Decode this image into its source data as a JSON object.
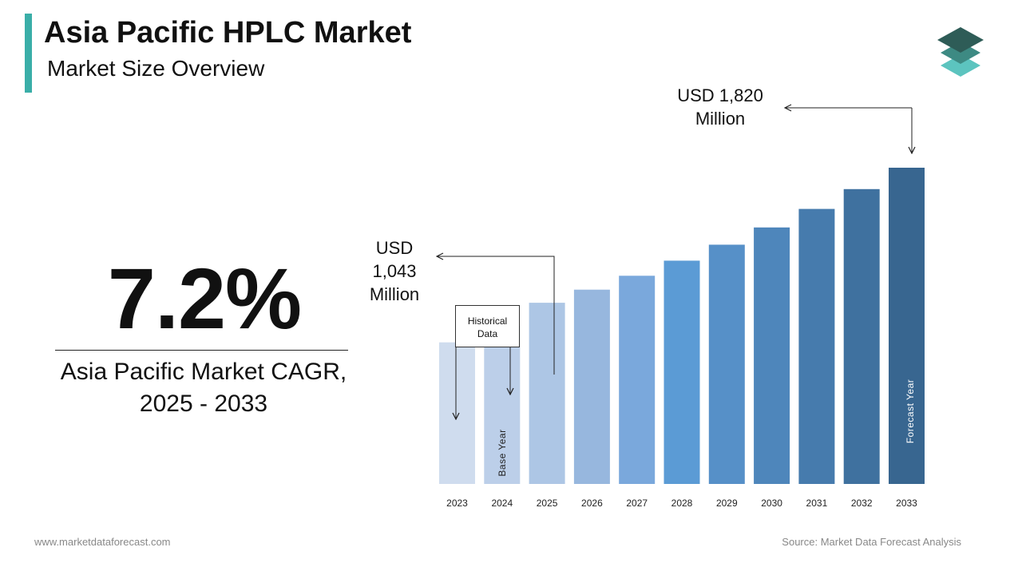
{
  "header": {
    "title": "Asia Pacific HPLC Market",
    "subtitle": "Market Size Overview",
    "accent_color": "#3aaea8"
  },
  "logo": {
    "icon": "stacked-layers-icon",
    "colors": [
      "#2e5c57",
      "#3d8a83",
      "#5cc4bf"
    ]
  },
  "kpi": {
    "value": "7.2%",
    "caption_line1": "Asia Pacific Market CAGR,",
    "caption_line2": "2025 - 2033"
  },
  "annotations": {
    "start_value_lines": [
      "USD",
      "1,043",
      "Million"
    ],
    "end_value_lines": [
      "USD 1,820",
      "Million"
    ],
    "historical_lines": [
      "Historical",
      "Data"
    ],
    "base_year_label": "Base Year",
    "forecast_year_label": "Forecast Year"
  },
  "chart_data": {
    "type": "bar",
    "categories": [
      "2023",
      "2024",
      "2025",
      "2026",
      "2027",
      "2028",
      "2029",
      "2030",
      "2031",
      "2032",
      "2033"
    ],
    "values": [
      815,
      910,
      1043,
      1118,
      1198,
      1285,
      1377,
      1476,
      1583,
      1697,
      1820
    ],
    "colors": [
      "#cfdcee",
      "#bccfe9",
      "#adc6e5",
      "#97b7de",
      "#7aa8dc",
      "#5b9bd5",
      "#5690c8",
      "#4e86bb",
      "#467bad",
      "#3f719f",
      "#386690"
    ],
    "ylim": [
      0,
      1820
    ],
    "grid": false,
    "legend": "none"
  },
  "footer": {
    "website": "www.marketdataforecast.com",
    "source": "Source: Market Data Forecast Analysis"
  }
}
